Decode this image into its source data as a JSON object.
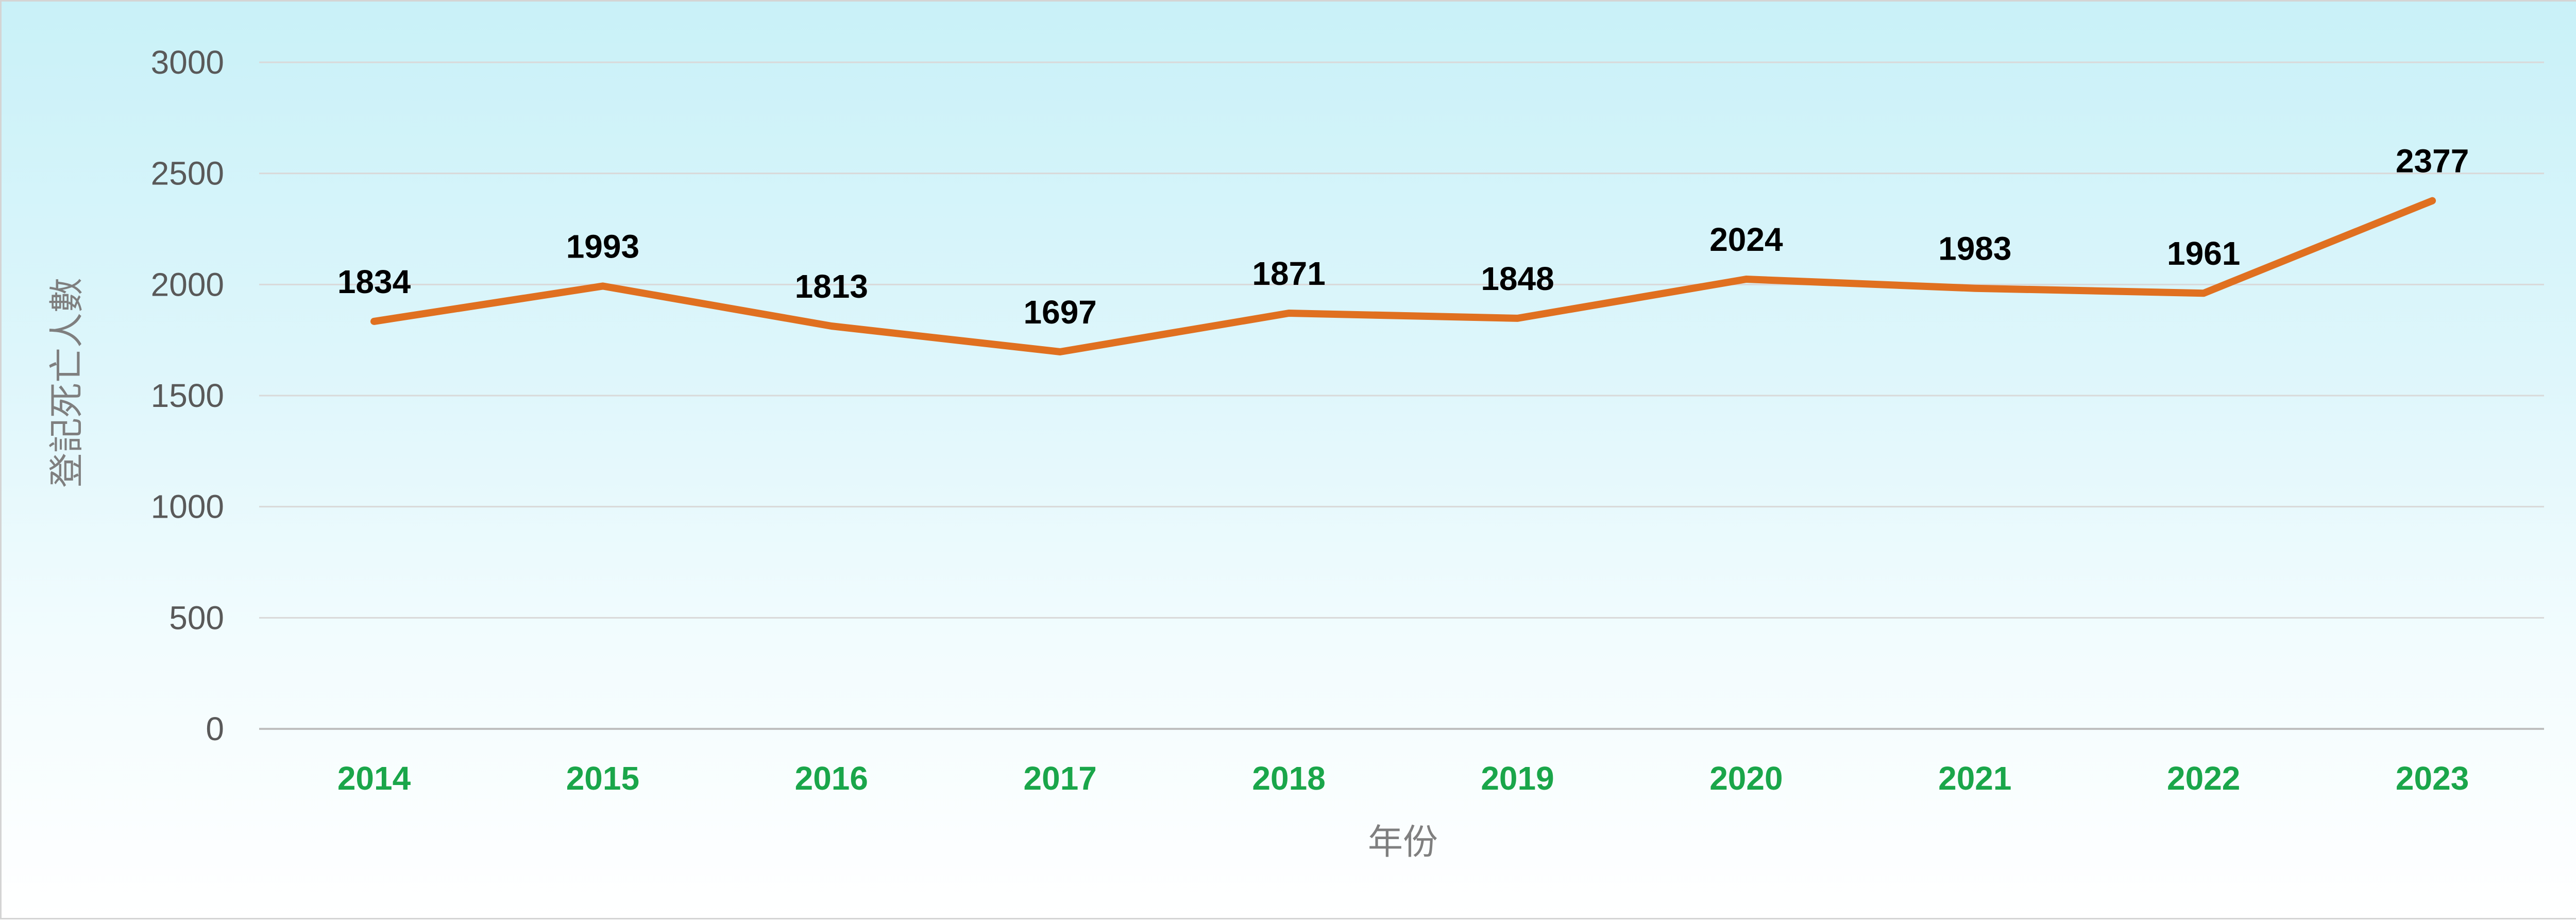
{
  "chart_data": {
    "type": "line",
    "title": "",
    "xlabel": "年份",
    "ylabel": "登記死亡人數",
    "categories": [
      "2014",
      "2015",
      "2016",
      "2017",
      "2018",
      "2019",
      "2020",
      "2021",
      "2022",
      "2023"
    ],
    "series": [
      {
        "values": [
          1834,
          1993,
          1813,
          1697,
          1871,
          1848,
          2024,
          1983,
          1961,
          2377
        ]
      }
    ],
    "ylim": [
      0,
      3000
    ],
    "yticks": [
      "0",
      "500",
      "1000",
      "1500",
      "2000",
      "2500",
      "3000"
    ],
    "data_labels": [
      "1834",
      "1993",
      "1813",
      "1697",
      "1871",
      "1848",
      "2024",
      "1983",
      "1961",
      "2377"
    ],
    "grid": true,
    "legend": "none",
    "colors": {
      "line": "#e07020",
      "x_tick_labels": "#1aa64a",
      "gridline": "#d9d9d9",
      "background_top": "#c9f1f8",
      "background_bottom": "#ffffff"
    }
  }
}
